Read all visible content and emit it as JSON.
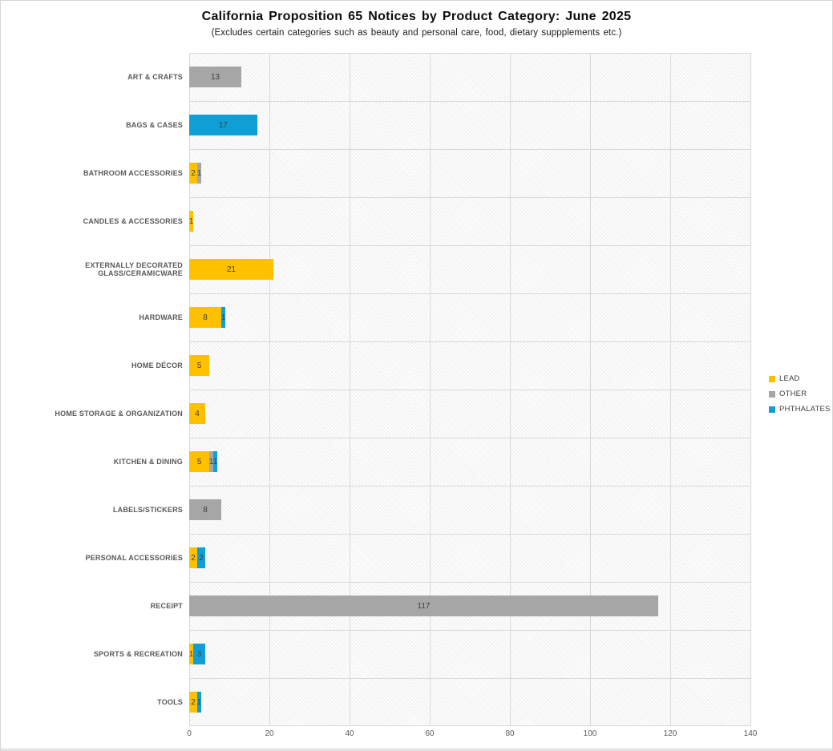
{
  "header": {
    "title": "California Proposition 65 Notices by Product Category: June 2025",
    "subtitle": "(Excludes certain categories such as beauty and personal care, food, dietary suppplements etc.)"
  },
  "colors": {
    "lead": "#FFC000",
    "other": "#A6A6A6",
    "phthalates": "#0F9ED5",
    "gridline": "#d9d9d9",
    "category_label": "#595959",
    "bar_value_label": "#404040"
  },
  "chart_data": {
    "type": "bar",
    "orientation": "horizontal",
    "stacked": true,
    "title": "California Proposition 65 Notices by Product Category: June 2025",
    "subtitle": "(Excludes certain categories such as beauty and personal care, food, dietary suppplements etc.)",
    "categories": [
      "ART & CRAFTS",
      "BAGS & CASES",
      "BATHROOM ACCESSORIES",
      "CANDLES & ACCESSORIES",
      "EXTERNALLY DECORATED GLASS/CERAMICWARE",
      "HARDWARE",
      "HOME DÉCOR",
      "HOME STORAGE & ORGANIZATION",
      "KITCHEN & DINING",
      "LABELS/STICKERS",
      "PERSONAL ACCESSORIES",
      "RECEIPT",
      "SPORTS & RECREATION",
      "TOOLS"
    ],
    "series": [
      {
        "name": "LEAD",
        "color": "#FFC000",
        "values": [
          0,
          0,
          2,
          1,
          21,
          8,
          5,
          4,
          5,
          0,
          2,
          0,
          1,
          2
        ]
      },
      {
        "name": "OTHER",
        "color": "#A6A6A6",
        "values": [
          13,
          0,
          1,
          0,
          0,
          0,
          0,
          0,
          1,
          8,
          0,
          117,
          0,
          0
        ]
      },
      {
        "name": "PHTHALATES",
        "color": "#0F9ED5",
        "values": [
          0,
          17,
          0,
          0,
          0,
          1,
          0,
          0,
          1,
          0,
          2,
          0,
          3,
          1
        ]
      }
    ],
    "xlim": [
      0,
      140
    ],
    "xticks": [
      0,
      20,
      40,
      60,
      80,
      100,
      120,
      140
    ],
    "grid": true,
    "legend_position": "right",
    "legend_entries": [
      "LEAD",
      "OTHER",
      "PHTHALATES"
    ]
  }
}
